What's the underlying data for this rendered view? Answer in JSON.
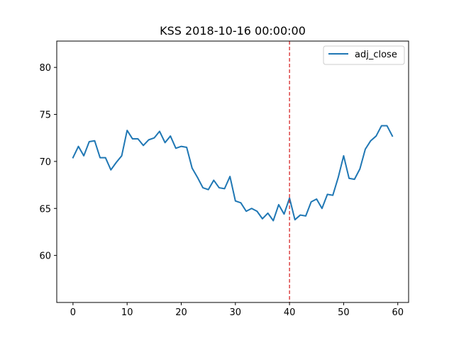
{
  "chart_data": {
    "type": "line",
    "title": "KSS 2018-10-16 00:00:00",
    "xlabel": "",
    "ylabel": "",
    "xlim": [
      -3,
      62
    ],
    "ylim": [
      55,
      82.8
    ],
    "x_ticks": [
      0,
      10,
      20,
      30,
      40,
      50,
      60
    ],
    "y_ticks": [
      60,
      65,
      70,
      75,
      80
    ],
    "grid": false,
    "legend_position": "top-right",
    "vline": {
      "x": 40,
      "color": "#d62728",
      "style": "dashed"
    },
    "series": [
      {
        "name": "adj_close",
        "color": "#1f77b4",
        "x": [
          0,
          1,
          2,
          3,
          4,
          5,
          6,
          7,
          8,
          9,
          10,
          11,
          12,
          13,
          14,
          15,
          16,
          17,
          18,
          19,
          20,
          21,
          22,
          23,
          24,
          25,
          26,
          27,
          28,
          29,
          30,
          31,
          32,
          33,
          34,
          35,
          36,
          37,
          38,
          39,
          40,
          41,
          42,
          43,
          44,
          45,
          46,
          47,
          48,
          49,
          50,
          51,
          52,
          53,
          54,
          55,
          56,
          57,
          58,
          59
        ],
        "values": [
          70.4,
          71.6,
          70.6,
          72.1,
          72.2,
          70.4,
          70.4,
          69.1,
          69.9,
          70.6,
          73.3,
          72.4,
          72.4,
          71.7,
          72.3,
          72.5,
          73.2,
          72.0,
          72.7,
          71.4,
          71.6,
          71.5,
          69.3,
          68.3,
          67.2,
          67.0,
          68.0,
          67.2,
          67.1,
          68.4,
          65.8,
          65.6,
          64.7,
          65.0,
          64.7,
          63.9,
          64.5,
          63.7,
          65.4,
          64.4,
          66.1,
          63.8,
          64.3,
          64.2,
          65.7,
          66.0,
          65.0,
          66.5,
          66.4,
          68.3,
          70.6,
          68.2,
          68.1,
          69.2,
          71.3,
          72.2,
          72.7,
          73.8,
          73.8,
          72.7
        ]
      }
    ]
  }
}
